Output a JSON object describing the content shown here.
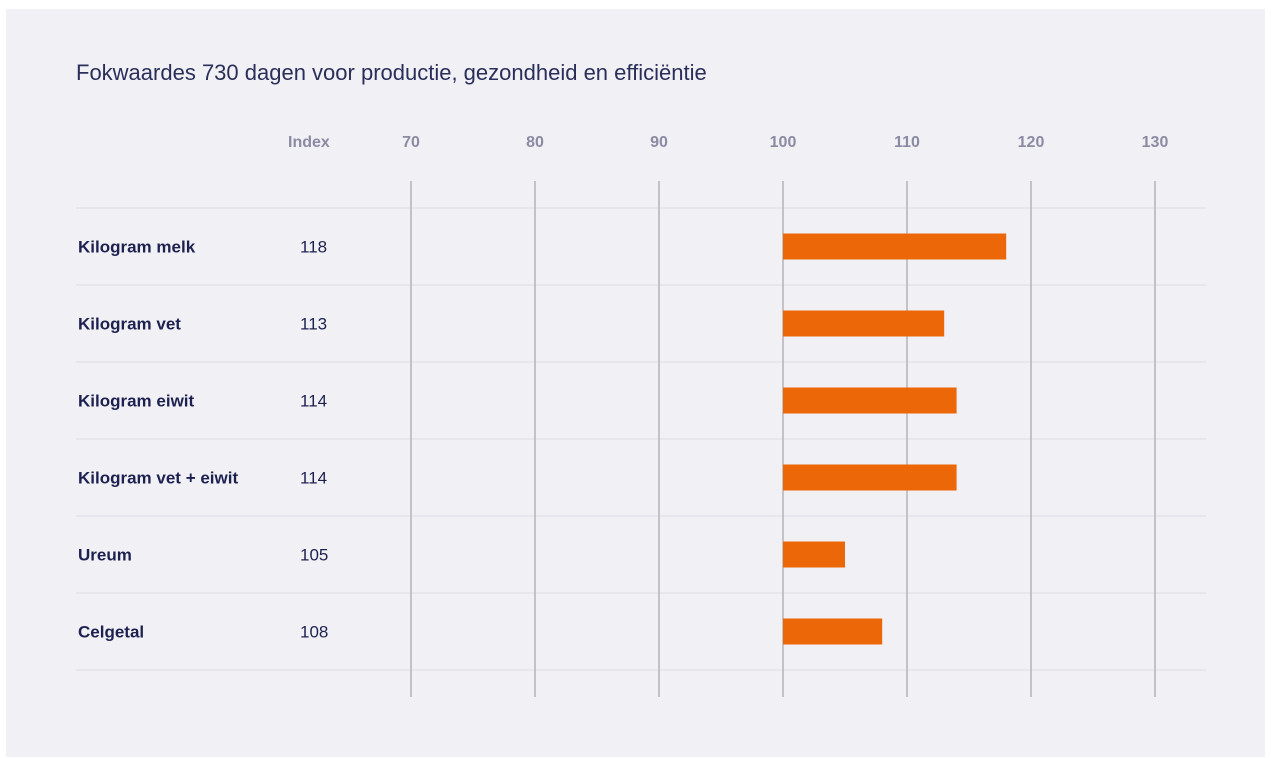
{
  "colors": {
    "background": "#f1f0f5",
    "bar": "#ec6707",
    "gridline": "#b3b3b8",
    "separator": "#e4e3ea",
    "label": "#1d2150",
    "header": "#8b8aa3",
    "title": "#2a2f5a"
  },
  "chart_data": {
    "type": "bar",
    "orientation": "horizontal",
    "title": "Fokwaardes 730 dagen voor productie, gezondheid en efficiëntie",
    "index_header": "Index",
    "baseline": 100,
    "xlim": [
      70,
      130
    ],
    "xticks": [
      70,
      80,
      90,
      100,
      110,
      120,
      130
    ],
    "grid": true,
    "categories": [
      "Kilogram melk",
      "Kilogram vet",
      "Kilogram eiwit",
      "Kilogram vet + eiwit",
      "Ureum",
      "Celgetal"
    ],
    "values": [
      118,
      113,
      114,
      114,
      105,
      108
    ]
  }
}
